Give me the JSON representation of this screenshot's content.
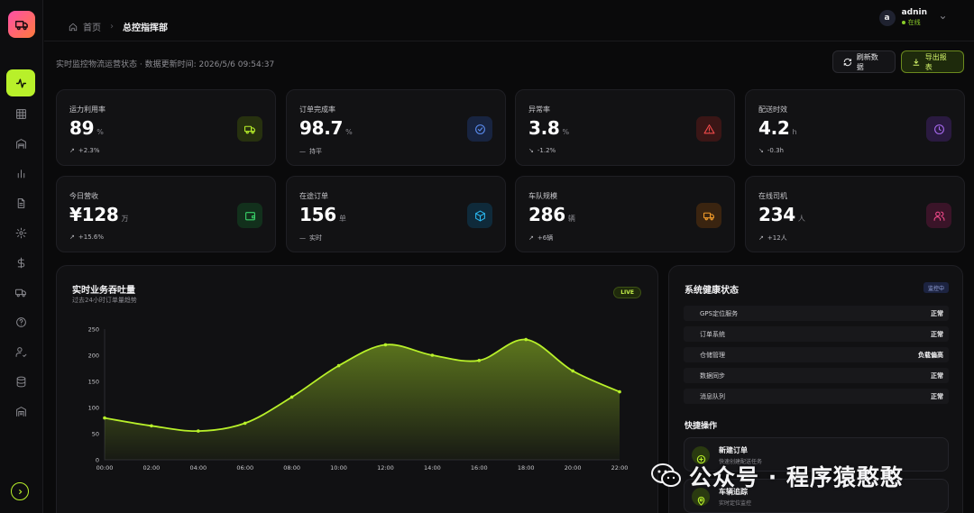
{
  "sidebar": {
    "items": [
      {
        "icon": "activity-icon",
        "active": true
      },
      {
        "icon": "grid-icon"
      },
      {
        "icon": "warehouse-icon"
      },
      {
        "icon": "bar-chart-icon"
      },
      {
        "icon": "document-icon"
      },
      {
        "icon": "gear-icon"
      },
      {
        "icon": "dollar-icon"
      },
      {
        "icon": "truck-icon"
      },
      {
        "icon": "help-icon"
      },
      {
        "icon": "user-check-icon"
      },
      {
        "icon": "database-icon"
      },
      {
        "icon": "building-icon"
      }
    ]
  },
  "header": {
    "breadcrumb_home": "首页",
    "breadcrumb_current": "总控指挥部",
    "user_initial": "a",
    "user_name": "adnin",
    "user_status": "在线"
  },
  "subheader": {
    "text": "实时监控物流运营状态 · 数据更新时间: 2026/5/6 09:54:37",
    "refresh_label": "刷新数据",
    "export_label": "导出报表"
  },
  "stats": [
    {
      "label": "运力利用率",
      "value": "89",
      "unit": "%",
      "trend": "+2.3%",
      "trend_dir": "up",
      "icon": "truck-icon",
      "color": "#b8f02a",
      "bg": "#27310f"
    },
    {
      "label": "订单完成率",
      "value": "98.7",
      "unit": "%",
      "trend": "持平",
      "trend_dir": "flat",
      "icon": "check-circle-icon",
      "color": "#5b8cf0",
      "bg": "#182440"
    },
    {
      "label": "异常率",
      "value": "3.8",
      "unit": "%",
      "trend": "-1.2%",
      "trend_dir": "down",
      "icon": "alert-triangle-icon",
      "color": "#f04a4a",
      "bg": "#3a1616"
    },
    {
      "label": "配送时效",
      "value": "4.2",
      "unit": "h",
      "trend": "-0.3h",
      "trend_dir": "down",
      "icon": "clock-icon",
      "color": "#a86af0",
      "bg": "#2a1a40"
    },
    {
      "label": "今日营收",
      "value": "¥128",
      "unit": "万",
      "trend": "+15.6%",
      "trend_dir": "up",
      "icon": "wallet-icon",
      "color": "#3ad46a",
      "bg": "#12301c"
    },
    {
      "label": "在途订单",
      "value": "156",
      "unit": "单",
      "trend": "实时",
      "trend_dir": "flat",
      "icon": "box-icon",
      "color": "#2ab8f0",
      "bg": "#0f2a3a"
    },
    {
      "label": "车队规模",
      "value": "286",
      "unit": "辆",
      "trend": "+6辆",
      "trend_dir": "up",
      "icon": "truck-icon",
      "color": "#f09a2a",
      "bg": "#3a2410"
    },
    {
      "label": "在线司机",
      "value": "234",
      "unit": "人",
      "trend": "+12人",
      "trend_dir": "up",
      "icon": "users-icon",
      "color": "#f04a8a",
      "bg": "#3a1428"
    }
  ],
  "chart_panel": {
    "title": "实时业务吞吐量",
    "subtitle": "过去24小时订单量趋势",
    "badge": "LIVE"
  },
  "chart_data": {
    "type": "area",
    "x": [
      "00:00",
      "02:00",
      "04:00",
      "06:00",
      "08:00",
      "10:00",
      "12:00",
      "14:00",
      "16:00",
      "18:00",
      "20:00",
      "22:00"
    ],
    "values": [
      80,
      65,
      55,
      70,
      120,
      180,
      220,
      200,
      190,
      230,
      170,
      130
    ],
    "ylim": [
      0,
      250
    ],
    "yticks": [
      0,
      50,
      100,
      150,
      200,
      250
    ],
    "line_color": "#b8f02a",
    "grid": false
  },
  "health": {
    "title": "系统健康状态",
    "badge": "监控中",
    "rows": [
      {
        "name": "GPS定位服务",
        "status": "正常"
      },
      {
        "name": "订单系统",
        "status": "正常"
      },
      {
        "name": "仓储管理",
        "status": "负载偏高"
      },
      {
        "name": "数据同步",
        "status": "正常"
      },
      {
        "name": "消息队列",
        "status": "正常"
      }
    ],
    "quick_title": "快捷操作",
    "quick": [
      {
        "name": "新建订单",
        "desc": "快速创建配送任务",
        "icon": "plus-circle-icon"
      },
      {
        "name": "车辆追踪",
        "desc": "实时定位监控",
        "icon": "map-pin-icon"
      }
    ]
  },
  "watermark": {
    "text": "公众号 · 程序猿憨憨"
  }
}
